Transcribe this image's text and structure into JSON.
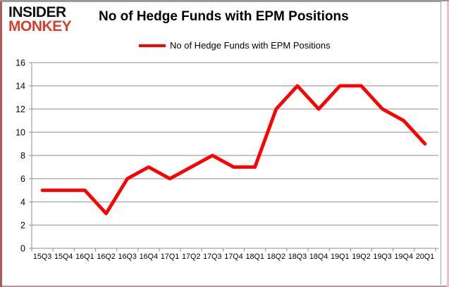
{
  "logo": {
    "line1": "INSIDER",
    "line2": "MONKEY",
    "monkey_color": "#d5402c"
  },
  "header": {
    "title": "No of Hedge Funds with EPM Positions"
  },
  "legend": {
    "label": "No of Hedge Funds with EPM Positions"
  },
  "chart_data": {
    "type": "line",
    "title": "No of Hedge Funds with EPM Positions",
    "categories": [
      "15Q3",
      "15Q4",
      "16Q1",
      "16Q2",
      "16Q3",
      "16Q4",
      "17Q1",
      "17Q2",
      "17Q3",
      "17Q4",
      "18Q1",
      "18Q2",
      "18Q3",
      "18Q4",
      "19Q1",
      "19Q2",
      "19Q3",
      "19Q4",
      "20Q1"
    ],
    "series": [
      {
        "name": "No of Hedge Funds with EPM Positions",
        "color": "#ff0000",
        "values": [
          5,
          5,
          5,
          3,
          6,
          7,
          6,
          7,
          8,
          7,
          7,
          12,
          14,
          12,
          14,
          14,
          12,
          11,
          9
        ]
      }
    ],
    "xlabel": "",
    "ylabel": "",
    "ylim": [
      0,
      16
    ],
    "ytick_step": 2,
    "grid": true,
    "gridline_color": "#8e8e8e",
    "axis_text_color": "#000000",
    "legend_position": "top"
  }
}
